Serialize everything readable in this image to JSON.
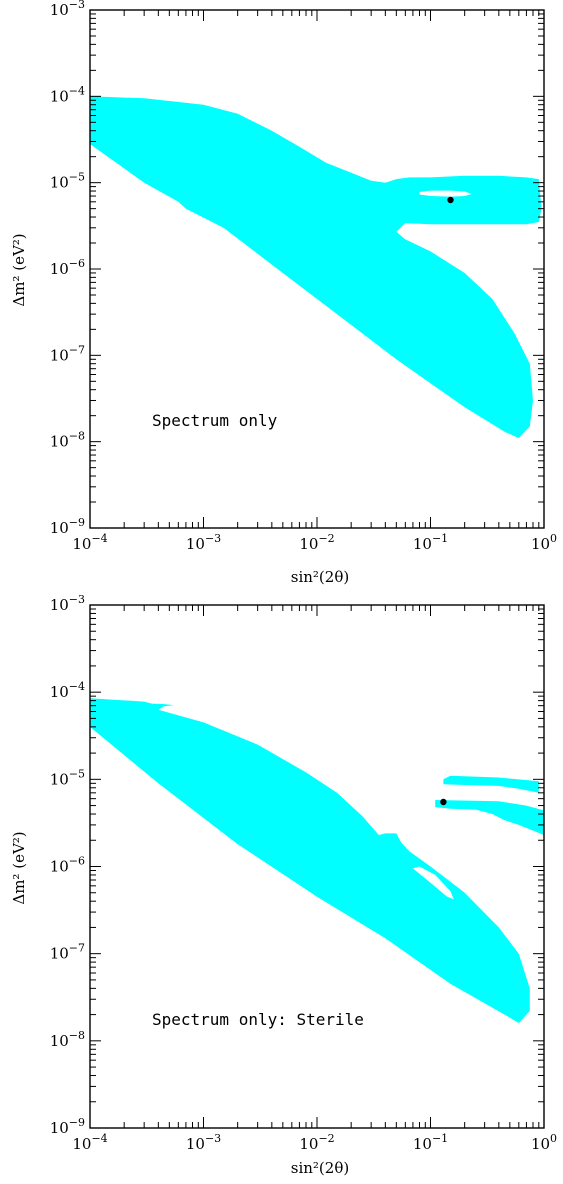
{
  "page": {
    "colors": {
      "region": "#00ffff",
      "frame": "#000000",
      "best_fit": "#000000",
      "background": "#ffffff"
    }
  },
  "chart_data": [
    {
      "type": "scatter",
      "panel": "top",
      "annotation": "Spectrum only",
      "xlabel": "sin²(2θ)",
      "ylabel": "Δm² (eV²)",
      "x_scale": "log",
      "y_scale": "log",
      "xlim": [
        0.0001,
        1
      ],
      "ylim": [
        1e-09,
        0.001
      ],
      "grid": false,
      "x_ticks": [
        {
          "value": 0.0001,
          "mantissa": "10",
          "exponent": "−4"
        },
        {
          "value": 0.001,
          "mantissa": "10",
          "exponent": "−3"
        },
        {
          "value": 0.01,
          "mantissa": "10",
          "exponent": "−2"
        },
        {
          "value": 0.1,
          "mantissa": "10",
          "exponent": "−1"
        },
        {
          "value": 1,
          "mantissa": "10",
          "exponent": "0"
        }
      ],
      "y_ticks": [
        {
          "value": 1e-09,
          "mantissa": "10",
          "exponent": "−9"
        },
        {
          "value": 1e-08,
          "mantissa": "10",
          "exponent": "−8"
        },
        {
          "value": 1e-07,
          "mantissa": "10",
          "exponent": "−7"
        },
        {
          "value": 1e-06,
          "mantissa": "10",
          "exponent": "−6"
        },
        {
          "value": 1e-05,
          "mantissa": "10",
          "exponent": "−5"
        },
        {
          "value": 0.0001,
          "mantissa": "10",
          "exponent": "−4"
        },
        {
          "value": 0.001,
          "mantissa": "10",
          "exponent": "−3"
        }
      ],
      "best_fit": {
        "x": 0.15,
        "y": 6.3e-06
      },
      "regions": [
        {
          "kind": "allowed",
          "points": [
            [
              0.0001,
              0.0001
            ],
            [
              0.0003,
              9.5e-05
            ],
            [
              0.001,
              8e-05
            ],
            [
              0.002,
              6.3e-05
            ],
            [
              0.004,
              4e-05
            ],
            [
              0.007,
              2.6e-05
            ],
            [
              0.012,
              1.7e-05
            ],
            [
              0.02,
              1.3e-05
            ],
            [
              0.03,
              1.05e-05
            ],
            [
              0.04,
              1e-05
            ],
            [
              0.05,
              1.1e-05
            ],
            [
              0.065,
              1.15e-05
            ],
            [
              0.1,
              1.15e-05
            ],
            [
              0.2,
              1.2e-05
            ],
            [
              0.4,
              1.2e-05
            ],
            [
              0.7,
              1.15e-05
            ],
            [
              0.9,
              1.1e-05
            ],
            [
              0.95,
              5e-06
            ],
            [
              0.9,
              3.5e-06
            ],
            [
              0.7,
              3.3e-06
            ],
            [
              0.4,
              3.3e-06
            ],
            [
              0.2,
              3.3e-06
            ],
            [
              0.1,
              3.3e-06
            ],
            [
              0.06,
              3.4e-06
            ],
            [
              0.05,
              2.7e-06
            ],
            [
              0.06,
              2.2e-06
            ],
            [
              0.1,
              1.6e-06
            ],
            [
              0.2,
              9e-07
            ],
            [
              0.35,
              4.5e-07
            ],
            [
              0.55,
              1.8e-07
            ],
            [
              0.75,
              8e-08
            ],
            [
              0.8,
              3e-08
            ],
            [
              0.75,
              1.5e-08
            ],
            [
              0.6,
              1.1e-08
            ],
            [
              0.45,
              1.3e-08
            ],
            [
              0.2,
              2.5e-08
            ],
            [
              0.05,
              9e-08
            ],
            [
              0.015,
              3e-07
            ],
            [
              0.005,
              9e-07
            ],
            [
              0.0015,
              3e-06
            ],
            [
              0.0007,
              5e-06
            ],
            [
              0.0006,
              6e-06
            ],
            [
              0.0003,
              1e-05
            ],
            [
              0.0001,
              2.8e-05
            ]
          ]
        },
        {
          "kind": "hole",
          "points": [
            [
              0.08,
              7.3e-06
            ],
            [
              0.1,
              7e-06
            ],
            [
              0.15,
              6.9e-06
            ],
            [
              0.2,
              7e-06
            ],
            [
              0.23,
              7.4e-06
            ],
            [
              0.2,
              7.9e-06
            ],
            [
              0.15,
              8.1e-06
            ],
            [
              0.1,
              8.1e-06
            ],
            [
              0.08,
              7.8e-06
            ]
          ]
        }
      ]
    },
    {
      "type": "scatter",
      "panel": "bottom",
      "annotation": "Spectrum only: Sterile",
      "xlabel": "sin²(2θ)",
      "ylabel": "Δm² (eV²)",
      "x_scale": "log",
      "y_scale": "log",
      "xlim": [
        0.0001,
        1
      ],
      "ylim": [
        1e-09,
        0.001
      ],
      "grid": false,
      "x_ticks": [
        {
          "value": 0.0001,
          "mantissa": "10",
          "exponent": "−4"
        },
        {
          "value": 0.001,
          "mantissa": "10",
          "exponent": "−3"
        },
        {
          "value": 0.01,
          "mantissa": "10",
          "exponent": "−2"
        },
        {
          "value": 0.1,
          "mantissa": "10",
          "exponent": "−1"
        },
        {
          "value": 1,
          "mantissa": "10",
          "exponent": "0"
        }
      ],
      "y_ticks": [
        {
          "value": 1e-09,
          "mantissa": "10",
          "exponent": "−9"
        },
        {
          "value": 1e-08,
          "mantissa": "10",
          "exponent": "−8"
        },
        {
          "value": 1e-07,
          "mantissa": "10",
          "exponent": "−7"
        },
        {
          "value": 1e-06,
          "mantissa": "10",
          "exponent": "−6"
        },
        {
          "value": 1e-05,
          "mantissa": "10",
          "exponent": "−5"
        },
        {
          "value": 0.0001,
          "mantissa": "10",
          "exponent": "−4"
        },
        {
          "value": 0.001,
          "mantissa": "10",
          "exponent": "−3"
        }
      ],
      "best_fit": {
        "x": 0.13,
        "y": 5.5e-06
      },
      "regions": [
        {
          "kind": "allowed",
          "points": [
            [
              0.0001,
              8.5e-05
            ],
            [
              0.0003,
              7.8e-05
            ],
            [
              0.00035,
              7.4e-05
            ],
            [
              0.00045,
              7.3e-05
            ],
            [
              0.00055,
              7.1e-05
            ],
            [
              0.00045,
              6.9e-05
            ],
            [
              0.0004,
              6.3e-05
            ],
            [
              0.001,
              4.5e-05
            ],
            [
              0.003,
              2.5e-05
            ],
            [
              0.008,
              1.2e-05
            ],
            [
              0.015,
              7e-06
            ],
            [
              0.025,
              3.8e-06
            ],
            [
              0.035,
              2.3e-06
            ],
            [
              0.04,
              2.4e-06
            ],
            [
              0.05,
              2.4e-06
            ],
            [
              0.055,
              1.9e-06
            ],
            [
              0.065,
              1.5e-06
            ],
            [
              0.1,
              1e-06
            ],
            [
              0.2,
              5e-07
            ],
            [
              0.4,
              2e-07
            ],
            [
              0.6,
              1e-07
            ],
            [
              0.75,
              4e-08
            ],
            [
              0.75,
              2.2e-08
            ],
            [
              0.6,
              1.6e-08
            ],
            [
              0.45,
              2e-08
            ],
            [
              0.15,
              4.5e-08
            ],
            [
              0.04,
              1.5e-07
            ],
            [
              0.01,
              4.5e-07
            ],
            [
              0.002,
              1.8e-06
            ],
            [
              0.0004,
              9e-06
            ],
            [
              0.0001,
              4e-05
            ]
          ]
        },
        {
          "kind": "hole",
          "points": [
            [
              0.07,
              9.5e-07
            ],
            [
              0.1,
              6.5e-07
            ],
            [
              0.14,
              4.5e-07
            ],
            [
              0.16,
              4.2e-07
            ],
            [
              0.15,
              5.2e-07
            ],
            [
              0.11,
              8e-07
            ],
            [
              0.08,
              1e-06
            ]
          ]
        },
        {
          "kind": "allowed",
          "points": [
            [
              0.13,
              1e-05
            ],
            [
              0.15,
              1.1e-05
            ],
            [
              0.4,
              1.05e-05
            ],
            [
              0.9,
              9.5e-06
            ],
            [
              0.9,
              7e-06
            ],
            [
              0.6,
              7.8e-06
            ],
            [
              0.4,
              8.4e-06
            ],
            [
              0.2,
              8.6e-06
            ],
            [
              0.13,
              8.8e-06
            ]
          ]
        },
        {
          "kind": "allowed",
          "points": [
            [
              0.11,
              5.8e-06
            ],
            [
              0.4,
              5.6e-06
            ],
            [
              0.7,
              5e-06
            ],
            [
              1.0,
              4.4e-06
            ],
            [
              1.0,
              2.3e-06
            ],
            [
              0.85,
              2.5e-06
            ],
            [
              0.6,
              3e-06
            ],
            [
              0.45,
              3.4e-06
            ],
            [
              0.35,
              4e-06
            ],
            [
              0.25,
              4.5e-06
            ],
            [
              0.15,
              4.6e-06
            ],
            [
              0.11,
              4.8e-06
            ]
          ]
        }
      ]
    }
  ]
}
